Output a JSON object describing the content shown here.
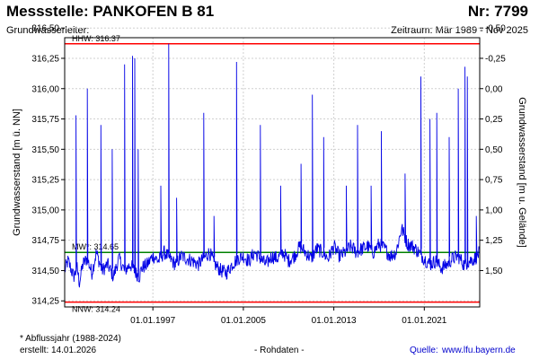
{
  "header": {
    "title": "Messstelle: PANKOFEN B 81",
    "number": "Nr: 7799",
    "aquifer_label": "Grundwasserleiter:",
    "period": "Zeitraum: Mär 1989 - Nov 2025"
  },
  "footer": {
    "note": "* Abflussjahr (1988-2024)",
    "created": "erstellt:  14.01.2026",
    "raw": "- Rohdaten -",
    "source_label": "Quelle:",
    "source_url": "www.lfu.bayern.de"
  },
  "chart_data": {
    "type": "line",
    "ylabel": "Grundwasserstand [m ü. NN]",
    "ylabel_right": "Grundwasserstand [m u. Gelände]",
    "ylim": [
      314.2,
      316.42
    ],
    "xlim": [
      1989.2,
      2025.9
    ],
    "grid": true,
    "y_ticks": [
      "314,25",
      "314,50",
      "314,75",
      "315,00",
      "315,25",
      "315,50",
      "315,75",
      "316,00",
      "316,25",
      "316,50"
    ],
    "y_right_ticks": [
      "-0,50",
      "-0,25",
      "0,00",
      "0,25",
      "0,50",
      "0,75",
      "1,00",
      "1,25",
      "1,50"
    ],
    "x_ticks": [
      "01.01.1997",
      "01.01.2005",
      "01.01.2013",
      "01.01.2021"
    ],
    "series_color": "#0000e6",
    "reference_lines": [
      {
        "label": "HHW: 316.37",
        "value": 316.37,
        "color": "#ff0000"
      },
      {
        "label": "MW*: 314.65",
        "value": 314.65,
        "color": "#008000"
      },
      {
        "label": "NNW: 314.24",
        "value": 314.24,
        "color": "#ff0000"
      }
    ],
    "series": [
      {
        "x": [
          1989.2,
          1989.5,
          1990.0,
          1990.3,
          1990.5,
          1990.8,
          1991.2,
          1991.6,
          1992.0,
          1992.5,
          1993.0,
          1993.5,
          1994.0,
          1994.5,
          1995.0,
          1995.5,
          1995.8,
          1996.0,
          1996.5,
          1997.0,
          1997.5,
          1998.0,
          1998.5,
          1999.0,
          1999.5,
          2000.0,
          2000.5,
          2001.0,
          2001.5,
          2002.0,
          2002.5,
          2003.0,
          2003.5,
          2004.0,
          2004.5,
          2005.0,
          2005.5,
          2006.0,
          2006.5,
          2007.0,
          2007.5,
          2008.0,
          2008.5,
          2009.0,
          2009.5,
          2010.0,
          2010.5,
          2011.0,
          2011.5,
          2012.0,
          2012.5,
          2013.0,
          2013.5,
          2014.0,
          2014.5,
          2015.0,
          2015.5,
          2016.0,
          2016.5,
          2017.0,
          2017.5,
          2018.0,
          2018.5,
          2019.0,
          2019.5,
          2020.0,
          2020.5,
          2021.0,
          2021.5,
          2022.0,
          2022.5,
          2023.0,
          2023.5,
          2024.0,
          2024.5,
          2025.0,
          2025.5,
          2025.9
        ],
        "y": [
          314.5,
          314.58,
          314.45,
          314.52,
          314.4,
          314.55,
          314.6,
          314.48,
          314.65,
          314.5,
          314.55,
          314.45,
          314.6,
          314.5,
          314.55,
          314.48,
          314.45,
          314.52,
          314.55,
          314.62,
          314.58,
          314.65,
          314.6,
          314.55,
          314.62,
          314.6,
          314.58,
          314.55,
          314.6,
          314.65,
          314.55,
          314.5,
          314.48,
          314.55,
          314.6,
          314.62,
          314.58,
          314.65,
          314.6,
          314.55,
          314.62,
          314.6,
          314.65,
          314.58,
          314.62,
          314.7,
          314.65,
          314.6,
          314.68,
          314.65,
          314.6,
          314.7,
          314.62,
          314.65,
          314.7,
          314.65,
          314.68,
          314.7,
          314.65,
          314.72,
          314.68,
          314.62,
          314.65,
          314.85,
          314.72,
          314.7,
          314.65,
          314.6,
          314.55,
          314.58,
          314.52,
          314.55,
          314.6,
          314.62,
          314.55,
          314.58,
          314.6,
          314.65
        ]
      }
    ],
    "spikes": [
      {
        "x": 1990.2,
        "y": 315.78
      },
      {
        "x": 1991.2,
        "y": 316.0
      },
      {
        "x": 1992.4,
        "y": 315.7
      },
      {
        "x": 1993.4,
        "y": 315.5
      },
      {
        "x": 1994.5,
        "y": 316.2
      },
      {
        "x": 1995.2,
        "y": 316.27
      },
      {
        "x": 1995.4,
        "y": 316.25
      },
      {
        "x": 1995.7,
        "y": 315.5
      },
      {
        "x": 1997.7,
        "y": 315.2
      },
      {
        "x": 1998.4,
        "y": 316.37
      },
      {
        "x": 1999.1,
        "y": 315.1
      },
      {
        "x": 2001.5,
        "y": 315.8
      },
      {
        "x": 2002.4,
        "y": 314.95
      },
      {
        "x": 2004.4,
        "y": 316.22
      },
      {
        "x": 2006.5,
        "y": 315.7
      },
      {
        "x": 2008.3,
        "y": 315.2
      },
      {
        "x": 2010.1,
        "y": 315.38
      },
      {
        "x": 2011.1,
        "y": 315.95
      },
      {
        "x": 2012.1,
        "y": 315.6
      },
      {
        "x": 2014.1,
        "y": 315.2
      },
      {
        "x": 2015.1,
        "y": 315.7
      },
      {
        "x": 2016.3,
        "y": 315.2
      },
      {
        "x": 2017.2,
        "y": 315.65
      },
      {
        "x": 2019.3,
        "y": 315.3
      },
      {
        "x": 2020.7,
        "y": 316.1
      },
      {
        "x": 2021.5,
        "y": 315.75
      },
      {
        "x": 2022.1,
        "y": 315.8
      },
      {
        "x": 2023.2,
        "y": 315.6
      },
      {
        "x": 2024.0,
        "y": 316.0
      },
      {
        "x": 2024.6,
        "y": 316.18
      },
      {
        "x": 2024.8,
        "y": 316.1
      },
      {
        "x": 2025.6,
        "y": 314.95
      }
    ]
  }
}
